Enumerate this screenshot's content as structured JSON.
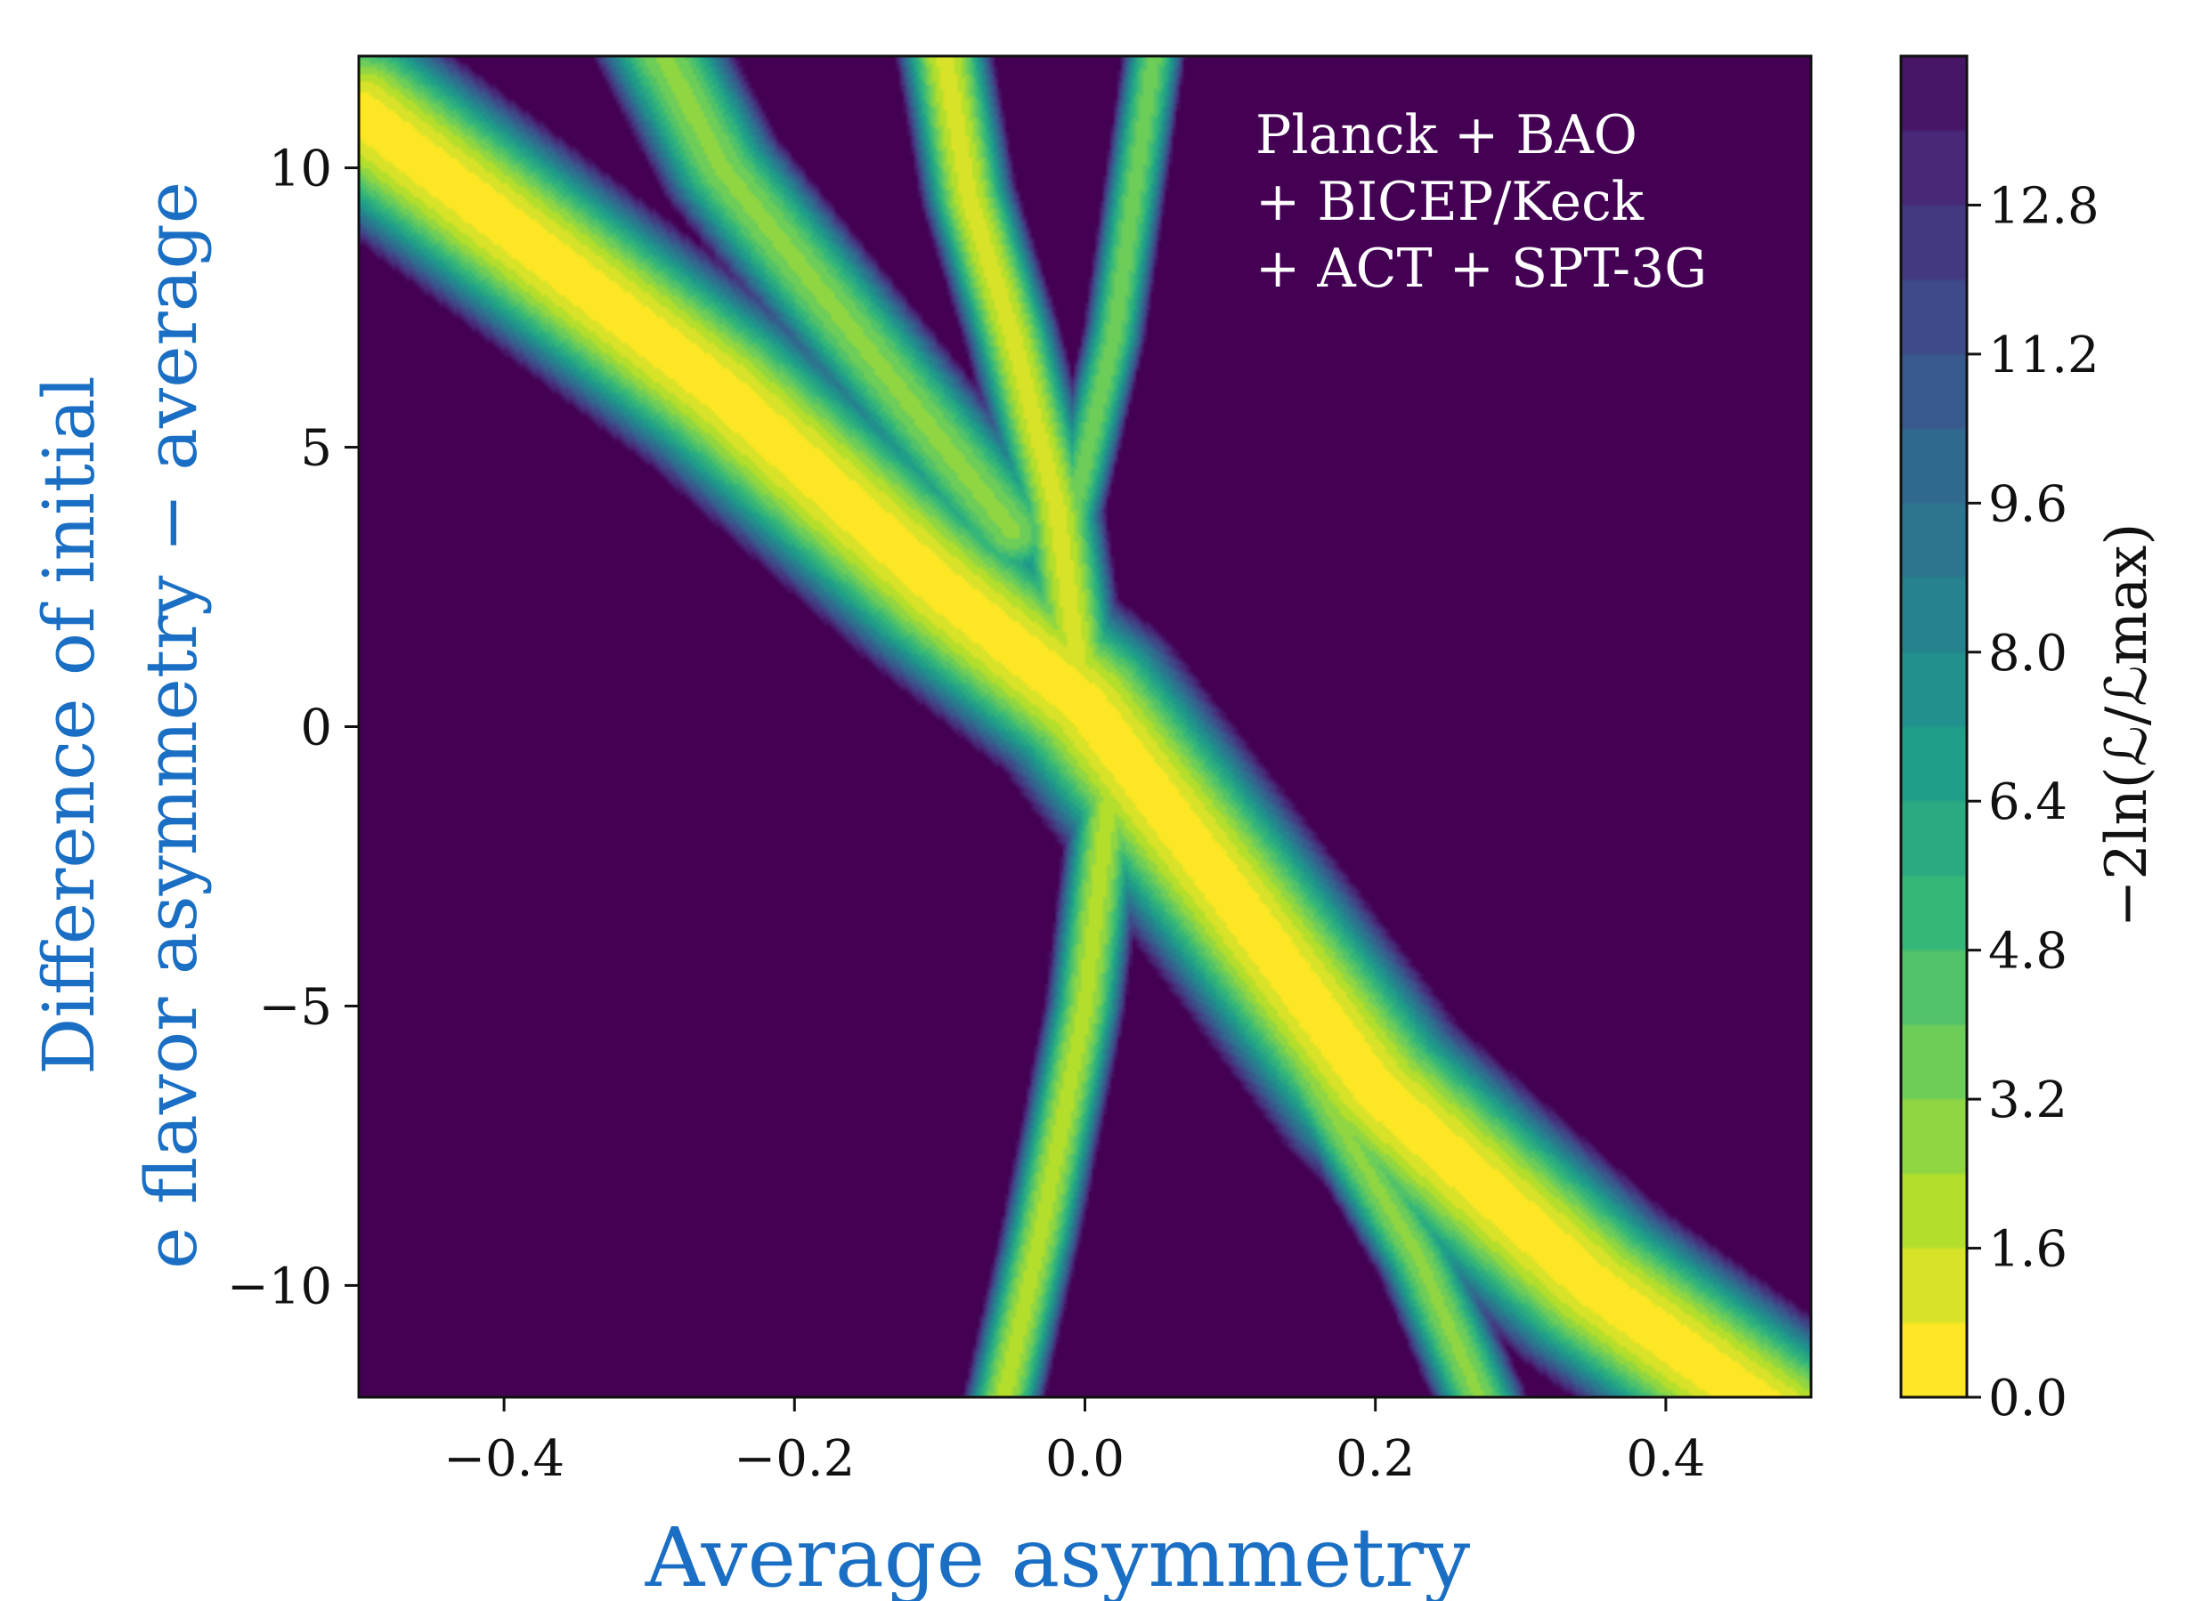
{
  "chart_data": {
    "type": "heatmap",
    "subtype": "filled-contour",
    "xlabel": "Average asymmetry",
    "ylabel_line1": "Difference of initial",
    "ylabel_line2": "e flavor asymmetry − average",
    "colorbar_label": "−2ln(ℒ/ℒmax)",
    "annotation": [
      "Planck + BAO",
      "+ BICEP/Keck",
      "+ ACT + SPT-3G"
    ],
    "xlim": [
      -0.5,
      0.5
    ],
    "ylim": [
      -12,
      12
    ],
    "xticks": [
      -0.4,
      -0.2,
      0.0,
      0.2,
      0.4
    ],
    "xtick_labels": [
      "−0.4",
      "−0.2",
      "0.0",
      "0.2",
      "0.4"
    ],
    "yticks": [
      10,
      5,
      0,
      -5,
      -10
    ],
    "ytick_labels": [
      "10",
      "5",
      "0",
      "−5",
      "−10"
    ],
    "colorbar_range": [
      0.0,
      14.4
    ],
    "colorbar_ticks": [
      0.0,
      1.6,
      3.2,
      4.8,
      6.4,
      8.0,
      9.6,
      11.2,
      12.8
    ],
    "colorbar_tick_labels": [
      "0.0",
      "1.6",
      "3.2",
      "4.8",
      "6.4",
      "8.0",
      "9.6",
      "11.2",
      "12.8"
    ],
    "colormap": "viridis_r",
    "background_value": 14.4,
    "bands": [
      {
        "name": "main-diagonal",
        "points": [
          [
            -0.5,
            11.0
          ],
          [
            -0.25,
            6.0
          ],
          [
            -0.1,
            2.5
          ],
          [
            0.0,
            0.4
          ],
          [
            0.1,
            -3.0
          ],
          [
            0.2,
            -6.5
          ],
          [
            0.35,
            -10.0
          ],
          [
            0.5,
            -12.8
          ]
        ],
        "half_width": 0.075,
        "min_value": 0.2
      },
      {
        "name": "upper-branch",
        "points": [
          [
            0.0,
            0.2
          ],
          [
            -0.02,
            4.0
          ],
          [
            -0.05,
            7.0
          ],
          [
            -0.08,
            9.5
          ],
          [
            -0.1,
            12.5
          ]
        ],
        "half_width": 0.035,
        "min_value": 1.2
      },
      {
        "name": "upper-fan",
        "points": [
          [
            -0.02,
            2.5
          ],
          [
            0.02,
            7.0
          ],
          [
            0.05,
            12.5
          ]
        ],
        "half_width": 0.025,
        "min_value": 3.5
      },
      {
        "name": "upper-left-fan",
        "points": [
          [
            -0.05,
            3.5
          ],
          [
            -0.25,
            10.0
          ],
          [
            -0.3,
            12.5
          ]
        ],
        "half_width": 0.05,
        "min_value": 3.0
      },
      {
        "name": "lower-branch",
        "points": [
          [
            0.02,
            -0.5
          ],
          [
            0.0,
            -5.0
          ],
          [
            -0.03,
            -9.0
          ],
          [
            -0.06,
            -12.5
          ]
        ],
        "half_width": 0.03,
        "min_value": 2.0
      },
      {
        "name": "lower-right-fan",
        "points": [
          [
            0.07,
            -2.0
          ],
          [
            0.15,
            -6.0
          ],
          [
            0.23,
            -9.5
          ],
          [
            0.28,
            -12.5
          ]
        ],
        "half_width": 0.035,
        "min_value": 3.0
      }
    ],
    "grid": false
  },
  "colors": {
    "background": "#ffffff",
    "axis_label_accent": "#1a6fc4",
    "annotation_text": "#ffffff"
  }
}
